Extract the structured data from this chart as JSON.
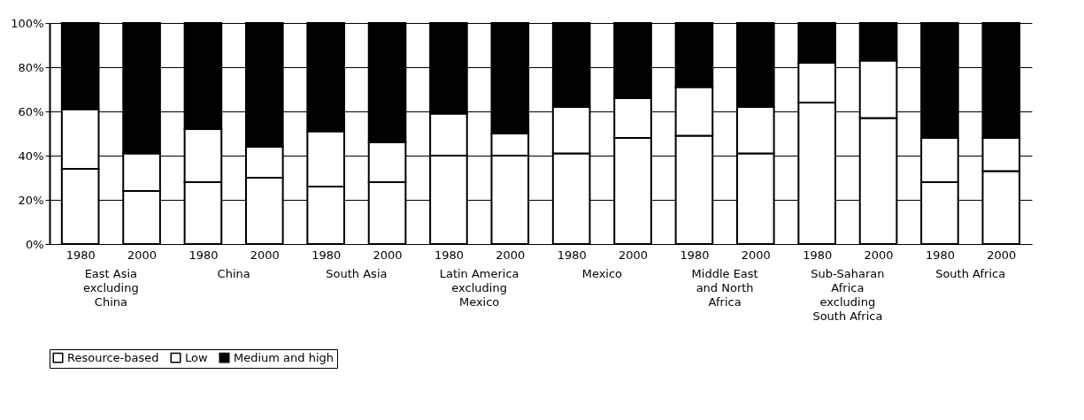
{
  "chart_data": {
    "type": "bar",
    "stacked": true,
    "categories": [
      "1980",
      "2000",
      "1980",
      "2000",
      "1980",
      "2000",
      "1980",
      "2000",
      "1980",
      "2000",
      "1980",
      "2000",
      "1980",
      "2000",
      "1980",
      "2000"
    ],
    "annotations": [
      "East Asia excluding China",
      "China",
      "South Asia",
      "Latin America excluding Mexico",
      "Mexico",
      "Middle East and North Africa",
      "Sub-Saharan Africa excluding South Africa",
      "South Africa"
    ],
    "series": [
      {
        "name": "Resource-based",
        "color": "#ffffff",
        "values": [
          34,
          24,
          28,
          30,
          26,
          28,
          40,
          40,
          41,
          48,
          49,
          41,
          64,
          57,
          28,
          33
        ]
      },
      {
        "name": "Low",
        "color": "#ffffff",
        "values": [
          27,
          17,
          24,
          14,
          25,
          18,
          19,
          10,
          21,
          18,
          22,
          21,
          18,
          26,
          20,
          15
        ]
      },
      {
        "name": "Medium and high",
        "color": "#000000",
        "values": [
          39,
          59,
          48,
          56,
          49,
          54,
          41,
          50,
          38,
          34,
          29,
          38,
          18,
          17,
          52,
          52
        ]
      }
    ],
    "ylim": [
      0,
      100
    ],
    "yticks": [
      {
        "value": 0,
        "label": "0%"
      },
      {
        "value": 20,
        "label": "20%"
      },
      {
        "value": 40,
        "label": "40%"
      },
      {
        "value": 60,
        "label": "60%"
      },
      {
        "value": 80,
        "label": "80%"
      },
      {
        "value": 100,
        "label": "100%"
      }
    ],
    "grid": "y",
    "legend": "bottom"
  }
}
